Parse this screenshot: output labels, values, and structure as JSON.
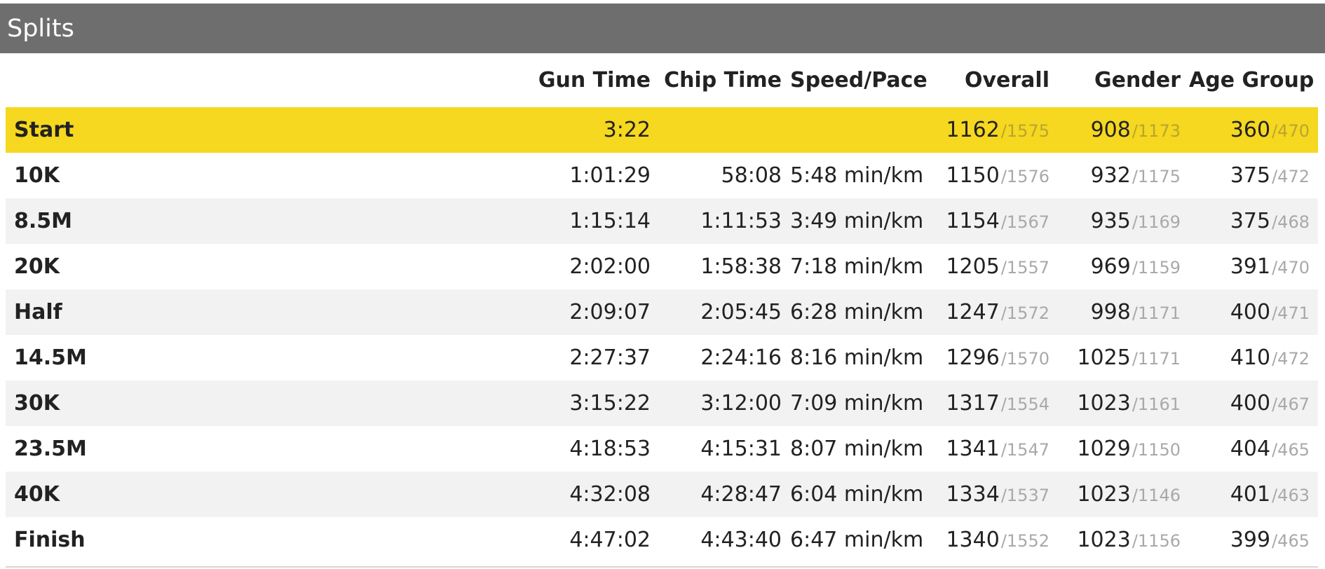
{
  "panel": {
    "title": "Splits"
  },
  "columns": {
    "split": "",
    "gun_time": "Gun Time",
    "chip_time": "Chip Time",
    "speed_pace": "Speed/Pace",
    "overall": "Overall",
    "gender": "Gender",
    "age_group": "Age Group"
  },
  "highlight_color": "#f5d81f",
  "header_color": "#6e6e6e",
  "rows": [
    {
      "name": "Start",
      "gun": "3:22",
      "chip": "",
      "pace": "",
      "overall": "1162",
      "overall_total": "/1575",
      "gender": "908",
      "gender_total": "/1173",
      "age": "360",
      "age_total": "/470"
    },
    {
      "name": "10K",
      "gun": "1:01:29",
      "chip": "58:08",
      "pace": "5:48 min/km",
      "overall": "1150",
      "overall_total": "/1576",
      "gender": "932",
      "gender_total": "/1175",
      "age": "375",
      "age_total": "/472"
    },
    {
      "name": "8.5M",
      "gun": "1:15:14",
      "chip": "1:11:53",
      "pace": "3:49 min/km",
      "overall": "1154",
      "overall_total": "/1567",
      "gender": "935",
      "gender_total": "/1169",
      "age": "375",
      "age_total": "/468"
    },
    {
      "name": "20K",
      "gun": "2:02:00",
      "chip": "1:58:38",
      "pace": "7:18 min/km",
      "overall": "1205",
      "overall_total": "/1557",
      "gender": "969",
      "gender_total": "/1159",
      "age": "391",
      "age_total": "/470"
    },
    {
      "name": "Half",
      "gun": "2:09:07",
      "chip": "2:05:45",
      "pace": "6:28 min/km",
      "overall": "1247",
      "overall_total": "/1572",
      "gender": "998",
      "gender_total": "/1171",
      "age": "400",
      "age_total": "/471"
    },
    {
      "name": "14.5M",
      "gun": "2:27:37",
      "chip": "2:24:16",
      "pace": "8:16 min/km",
      "overall": "1296",
      "overall_total": "/1570",
      "gender": "1025",
      "gender_total": "/1171",
      "age": "410",
      "age_total": "/472"
    },
    {
      "name": "30K",
      "gun": "3:15:22",
      "chip": "3:12:00",
      "pace": "7:09 min/km",
      "overall": "1317",
      "overall_total": "/1554",
      "gender": "1023",
      "gender_total": "/1161",
      "age": "400",
      "age_total": "/467"
    },
    {
      "name": "23.5M",
      "gun": "4:18:53",
      "chip": "4:15:31",
      "pace": "8:07 min/km",
      "overall": "1341",
      "overall_total": "/1547",
      "gender": "1029",
      "gender_total": "/1150",
      "age": "404",
      "age_total": "/465"
    },
    {
      "name": "40K",
      "gun": "4:32:08",
      "chip": "4:28:47",
      "pace": "6:04 min/km",
      "overall": "1334",
      "overall_total": "/1537",
      "gender": "1023",
      "gender_total": "/1146",
      "age": "401",
      "age_total": "/463"
    },
    {
      "name": "Finish",
      "gun": "4:47:02",
      "chip": "4:43:40",
      "pace": "6:47 min/km",
      "overall": "1340",
      "overall_total": "/1552",
      "gender": "1023",
      "gender_total": "/1156",
      "age": "399",
      "age_total": "/465"
    }
  ]
}
